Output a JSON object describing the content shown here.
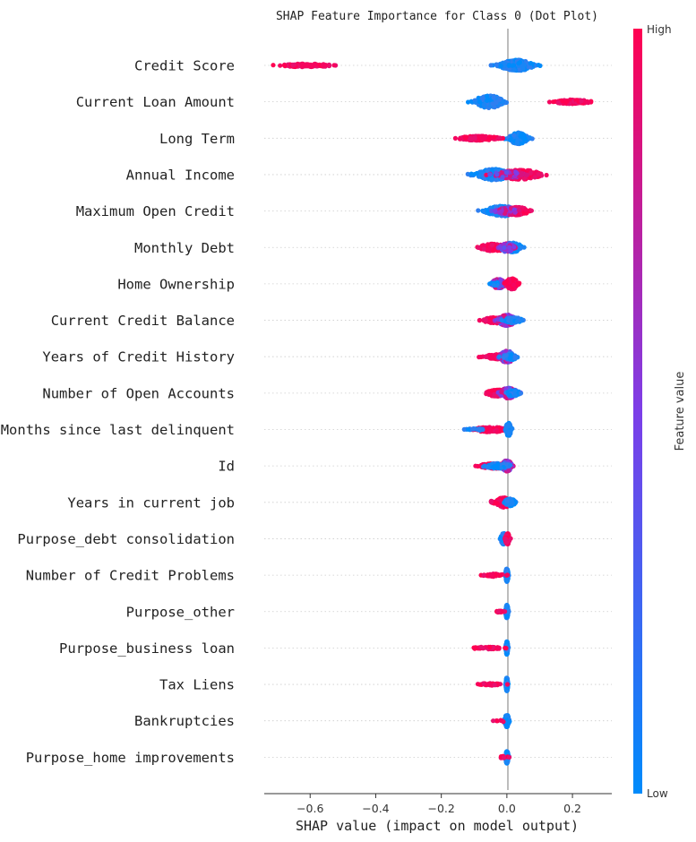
{
  "chart_data": {
    "type": "scatter",
    "subtype": "shap-beeswarm",
    "title": "SHAP Feature Importance for Class 0 (Dot Plot)",
    "xlabel": "SHAP value (impact on model output)",
    "xlim": [
      -0.74,
      0.32
    ],
    "xticks": [
      {
        "value": -0.6,
        "label": "−0.6"
      },
      {
        "value": -0.4,
        "label": "−0.4"
      },
      {
        "value": -0.2,
        "label": "−0.2"
      },
      {
        "value": 0.0,
        "label": "0.0"
      },
      {
        "value": 0.2,
        "label": "0.2"
      }
    ],
    "colorbar": {
      "high_label": "High",
      "low_label": "Low",
      "title": "Feature value",
      "low_color": "#008bfb",
      "high_color": "#ff0051"
    },
    "features": [
      {
        "name": "Credit Score",
        "clusters": [
          {
            "center": 0.03,
            "spread": 0.045,
            "height": 0.3,
            "n": 260,
            "color": "low"
          },
          {
            "center": -0.015,
            "spread": 0.03,
            "height": 0.06,
            "n": 30,
            "color": "low"
          },
          {
            "center": -0.61,
            "spread": 0.07,
            "height": 0.09,
            "n": 110,
            "color": "high"
          }
        ]
      },
      {
        "name": "Current Loan Amount",
        "clusters": [
          {
            "center": -0.055,
            "spread": 0.04,
            "height": 0.34,
            "n": 260,
            "color": "low"
          },
          {
            "center": 0.2,
            "spread": 0.05,
            "height": 0.11,
            "n": 110,
            "color": "high"
          }
        ]
      },
      {
        "name": "Long Term",
        "clusters": [
          {
            "center": 0.035,
            "spread": 0.025,
            "height": 0.32,
            "n": 200,
            "color": "low"
          },
          {
            "center": -0.085,
            "spread": 0.055,
            "height": 0.12,
            "n": 150,
            "color": "high"
          }
        ]
      },
      {
        "name": "Annual Income",
        "clusters": [
          {
            "center": -0.04,
            "spread": 0.05,
            "height": 0.3,
            "n": 200,
            "color": "low"
          },
          {
            "center": 0.04,
            "spread": 0.06,
            "height": 0.26,
            "n": 200,
            "color": "high"
          },
          {
            "center": 0.005,
            "spread": 0.04,
            "height": 0.2,
            "n": 60,
            "color": "mid"
          }
        ]
      },
      {
        "name": "Maximum Open Credit",
        "clusters": [
          {
            "center": -0.015,
            "spread": 0.045,
            "height": 0.28,
            "n": 200,
            "color": "low"
          },
          {
            "center": 0.025,
            "spread": 0.04,
            "height": 0.22,
            "n": 160,
            "color": "high"
          },
          {
            "center": 0.0,
            "spread": 0.03,
            "height": 0.22,
            "n": 60,
            "color": "mid"
          }
        ]
      },
      {
        "name": "Monthly Debt",
        "clusters": [
          {
            "center": -0.04,
            "spread": 0.04,
            "height": 0.2,
            "n": 140,
            "color": "high"
          },
          {
            "center": 0.015,
            "spread": 0.03,
            "height": 0.26,
            "n": 160,
            "color": "low"
          },
          {
            "center": 0.0,
            "spread": 0.02,
            "height": 0.24,
            "n": 80,
            "color": "mid"
          }
        ]
      },
      {
        "name": "Home Ownership",
        "clusters": [
          {
            "center": -0.025,
            "spread": 0.02,
            "height": 0.26,
            "n": 140,
            "color": "mid"
          },
          {
            "center": 0.015,
            "spread": 0.017,
            "height": 0.3,
            "n": 140,
            "color": "high"
          },
          {
            "center": -0.035,
            "spread": 0.015,
            "height": 0.08,
            "n": 20,
            "color": "low"
          }
        ]
      },
      {
        "name": "Current Credit Balance",
        "clusters": [
          {
            "center": -0.03,
            "spread": 0.04,
            "height": 0.16,
            "n": 120,
            "color": "high"
          },
          {
            "center": 0.0,
            "spread": 0.025,
            "height": 0.3,
            "n": 160,
            "color": "mid"
          },
          {
            "center": 0.02,
            "spread": 0.025,
            "height": 0.16,
            "n": 60,
            "color": "low"
          }
        ]
      },
      {
        "name": "Years of Credit History",
        "clusters": [
          {
            "center": -0.02,
            "spread": 0.04,
            "height": 0.14,
            "n": 120,
            "color": "high"
          },
          {
            "center": 0.0,
            "spread": 0.02,
            "height": 0.32,
            "n": 180,
            "color": "mid"
          },
          {
            "center": 0.01,
            "spread": 0.02,
            "height": 0.18,
            "n": 60,
            "color": "low"
          }
        ]
      },
      {
        "name": "Number of Open Accounts",
        "clusters": [
          {
            "center": -0.03,
            "spread": 0.03,
            "height": 0.18,
            "n": 140,
            "color": "high"
          },
          {
            "center": 0.005,
            "spread": 0.025,
            "height": 0.28,
            "n": 160,
            "color": "mid"
          },
          {
            "center": 0.02,
            "spread": 0.02,
            "height": 0.16,
            "n": 60,
            "color": "low"
          }
        ]
      },
      {
        "name": "Months since last delinquent",
        "clusters": [
          {
            "center": -0.05,
            "spread": 0.045,
            "height": 0.14,
            "n": 140,
            "color": "high"
          },
          {
            "center": 0.005,
            "spread": 0.008,
            "height": 0.36,
            "n": 120,
            "color": "low"
          },
          {
            "center": -0.1,
            "spread": 0.03,
            "height": 0.06,
            "n": 20,
            "color": "low"
          }
        ]
      },
      {
        "name": "Id",
        "clusters": [
          {
            "center": -0.04,
            "spread": 0.04,
            "height": 0.14,
            "n": 120,
            "color": "high"
          },
          {
            "center": 0.0,
            "spread": 0.015,
            "height": 0.3,
            "n": 140,
            "color": "mid"
          },
          {
            "center": -0.03,
            "spread": 0.04,
            "height": 0.14,
            "n": 60,
            "color": "low"
          }
        ]
      },
      {
        "name": "Years in current job",
        "clusters": [
          {
            "center": -0.01,
            "spread": 0.02,
            "height": 0.28,
            "n": 180,
            "color": "high"
          },
          {
            "center": 0.01,
            "spread": 0.015,
            "height": 0.2,
            "n": 60,
            "color": "low"
          },
          {
            "center": -0.04,
            "spread": 0.015,
            "height": 0.08,
            "n": 20,
            "color": "high"
          }
        ]
      },
      {
        "name": "Purpose_debt consolidation",
        "clusters": [
          {
            "center": -0.01,
            "spread": 0.008,
            "height": 0.3,
            "n": 120,
            "color": "low"
          },
          {
            "center": 0.002,
            "spread": 0.006,
            "height": 0.3,
            "n": 120,
            "color": "high"
          }
        ]
      },
      {
        "name": "Number of Credit Problems",
        "clusters": [
          {
            "center": 0.0,
            "spread": 0.004,
            "height": 0.36,
            "n": 160,
            "color": "low"
          },
          {
            "center": -0.04,
            "spread": 0.03,
            "height": 0.08,
            "n": 60,
            "color": "high"
          }
        ]
      },
      {
        "name": "Purpose_other",
        "clusters": [
          {
            "center": 0.0,
            "spread": 0.004,
            "height": 0.36,
            "n": 160,
            "color": "low"
          },
          {
            "center": -0.02,
            "spread": 0.01,
            "height": 0.06,
            "n": 20,
            "color": "high"
          }
        ]
      },
      {
        "name": "Purpose_business loan",
        "clusters": [
          {
            "center": 0.0,
            "spread": 0.003,
            "height": 0.36,
            "n": 160,
            "color": "low"
          },
          {
            "center": -0.06,
            "spread": 0.05,
            "height": 0.06,
            "n": 40,
            "color": "high"
          }
        ]
      },
      {
        "name": "Tax Liens",
        "clusters": [
          {
            "center": 0.0,
            "spread": 0.003,
            "height": 0.36,
            "n": 160,
            "color": "low"
          },
          {
            "center": -0.05,
            "spread": 0.035,
            "height": 0.06,
            "n": 40,
            "color": "high"
          }
        ]
      },
      {
        "name": "Bankruptcies",
        "clusters": [
          {
            "center": 0.0,
            "spread": 0.006,
            "height": 0.34,
            "n": 140,
            "color": "low"
          },
          {
            "center": -0.02,
            "spread": 0.02,
            "height": 0.05,
            "n": 8,
            "color": "high"
          }
        ]
      },
      {
        "name": "Purpose_home improvements",
        "clusters": [
          {
            "center": 0.0,
            "spread": 0.004,
            "height": 0.34,
            "n": 140,
            "color": "low"
          },
          {
            "center": -0.01,
            "spread": 0.012,
            "height": 0.06,
            "n": 14,
            "color": "high"
          }
        ]
      }
    ]
  }
}
